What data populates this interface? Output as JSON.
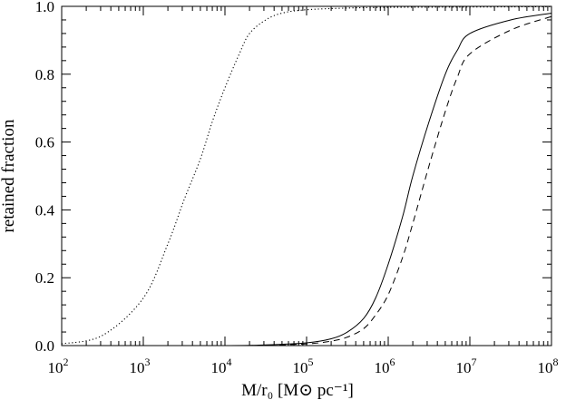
{
  "chart_data": {
    "type": "line",
    "xscale": "log",
    "xlim": [
      100,
      100000000
    ],
    "ylim": [
      0,
      1
    ],
    "grid": false,
    "xlabel": "M/r₀ [M⊙ pc⁻¹]",
    "ylabel": "retained fraction",
    "x_ticks": [
      {
        "base": "10",
        "exp": "2",
        "value": 100
      },
      {
        "base": "10",
        "exp": "3",
        "value": 1000
      },
      {
        "base": "10",
        "exp": "4",
        "value": 10000
      },
      {
        "base": "10",
        "exp": "5",
        "value": 100000
      },
      {
        "base": "10",
        "exp": "6",
        "value": 1000000
      },
      {
        "base": "10",
        "exp": "7",
        "value": 10000000
      },
      {
        "base": "10",
        "exp": "8",
        "value": 100000000
      }
    ],
    "y_ticks": [
      {
        "label": "0.0",
        "value": 0.0
      },
      {
        "label": "0.2",
        "value": 0.2
      },
      {
        "label": "0.4",
        "value": 0.4
      },
      {
        "label": "0.6",
        "value": 0.6
      },
      {
        "label": "0.8",
        "value": 0.8
      },
      {
        "label": "1.0",
        "value": 1.0
      }
    ],
    "series": [
      {
        "style": "dotted",
        "x": [
          100,
          316,
          1000,
          2000,
          3162,
          5000,
          7000,
          10000,
          15000,
          20000,
          31623,
          50000,
          100000,
          316228,
          1000000,
          10000000,
          100000000
        ],
        "y": [
          0.005,
          0.03,
          0.14,
          0.3,
          0.43,
          0.55,
          0.66,
          0.76,
          0.86,
          0.92,
          0.96,
          0.98,
          0.99,
          0.995,
          0.997,
          0.998,
          0.999
        ]
      },
      {
        "style": "solid",
        "x": [
          100,
          10000,
          31623,
          100000,
          200000,
          316228,
          500000,
          700000,
          1000000,
          1500000,
          2000000,
          3162278,
          5000000,
          7000000,
          10000000,
          31622777,
          100000000
        ],
        "y": [
          0.0,
          0.0,
          0.002,
          0.008,
          0.02,
          0.04,
          0.08,
          0.14,
          0.24,
          0.38,
          0.5,
          0.66,
          0.8,
          0.87,
          0.92,
          0.96,
          0.98
        ]
      },
      {
        "style": "dashed",
        "x": [
          100,
          10000,
          31623,
          100000,
          200000,
          316228,
          500000,
          700000,
          1000000,
          1500000,
          2000000,
          3162278,
          5000000,
          7000000,
          10000000,
          31622777,
          100000000
        ],
        "y": [
          0.0,
          0.0,
          0.001,
          0.005,
          0.013,
          0.025,
          0.05,
          0.09,
          0.15,
          0.26,
          0.36,
          0.53,
          0.69,
          0.79,
          0.86,
          0.93,
          0.97
        ]
      }
    ]
  }
}
